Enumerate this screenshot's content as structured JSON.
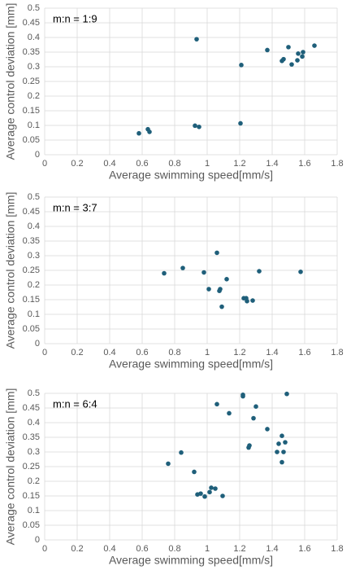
{
  "chart_data": [
    {
      "type": "scatter",
      "annotation": "m:n = 1:9",
      "x_label": "Average swimming speed[mm/s]",
      "y_label": "Average control deviation [mm]",
      "color": "#1f5f7a",
      "grid": true,
      "x": [
        0.58,
        0.635,
        0.645,
        0.925,
        0.95,
        0.935,
        1.205,
        1.21,
        1.37,
        1.46,
        1.47,
        1.5,
        1.52,
        1.555,
        1.56,
        1.585,
        1.59,
        1.66
      ],
      "values": [
        0.073,
        0.087,
        0.078,
        0.099,
        0.095,
        0.394,
        0.107,
        0.306,
        0.357,
        0.32,
        0.326,
        0.367,
        0.308,
        0.322,
        0.345,
        0.335,
        0.35,
        0.372
      ],
      "xlim": [
        0,
        1.8
      ],
      "xticks": [
        0,
        0.2,
        0.4,
        0.6,
        0.8,
        1,
        1.2,
        1.4,
        1.6,
        1.8
      ],
      "ylim": [
        0,
        0.5
      ],
      "yticks": [
        0,
        0.05,
        0.1,
        0.15,
        0.2,
        0.25,
        0.3,
        0.35,
        0.4,
        0.45,
        0.5
      ]
    },
    {
      "type": "scatter",
      "annotation": "m:n = 3:7",
      "x_label": "Average swimming speed[mm/s]",
      "y_label": "Average control deviation [mm]",
      "color": "#1f5f7a",
      "grid": true,
      "x": [
        0.735,
        0.85,
        0.98,
        1.01,
        1.06,
        1.075,
        1.08,
        1.09,
        1.12,
        1.225,
        1.24,
        1.245,
        1.28,
        1.32,
        1.575
      ],
      "values": [
        0.24,
        0.258,
        0.243,
        0.186,
        0.31,
        0.18,
        0.186,
        0.126,
        0.22,
        0.155,
        0.155,
        0.145,
        0.147,
        0.247,
        0.245
      ],
      "xlim": [
        0,
        1.8
      ],
      "xticks": [
        0,
        0.2,
        0.4,
        0.6,
        0.8,
        1,
        1.2,
        1.4,
        1.6,
        1.8
      ],
      "ylim": [
        0,
        0.5
      ],
      "yticks": [
        0,
        0.05,
        0.1,
        0.15,
        0.2,
        0.25,
        0.3,
        0.35,
        0.4,
        0.45,
        0.5
      ]
    },
    {
      "type": "scatter",
      "annotation": "m:n = 6:4",
      "x_label": "Average swimming speed[mm/s]",
      "y_label": "Average control deviation [mm]",
      "color": "#1f5f7a",
      "grid": true,
      "x": [
        0.76,
        0.84,
        0.92,
        0.94,
        0.96,
        0.985,
        1.015,
        1.025,
        1.05,
        1.06,
        1.095,
        1.135,
        1.22,
        1.22,
        1.255,
        1.26,
        1.285,
        1.3,
        1.37,
        1.43,
        1.44,
        1.46,
        1.46,
        1.47,
        1.48,
        1.49
      ],
      "values": [
        0.26,
        0.298,
        0.232,
        0.155,
        0.158,
        0.148,
        0.163,
        0.178,
        0.175,
        0.463,
        0.15,
        0.432,
        0.49,
        0.495,
        0.315,
        0.322,
        0.415,
        0.455,
        0.378,
        0.3,
        0.328,
        0.265,
        0.355,
        0.3,
        0.333,
        0.498
      ],
      "xlim": [
        0,
        1.8
      ],
      "xticks": [
        0,
        0.2,
        0.4,
        0.6,
        0.8,
        1,
        1.2,
        1.4,
        1.6,
        1.8
      ],
      "ylim": [
        0,
        0.5
      ],
      "yticks": [
        0,
        0.05,
        0.1,
        0.15,
        0.2,
        0.25,
        0.3,
        0.35,
        0.4,
        0.45,
        0.5
      ]
    }
  ]
}
